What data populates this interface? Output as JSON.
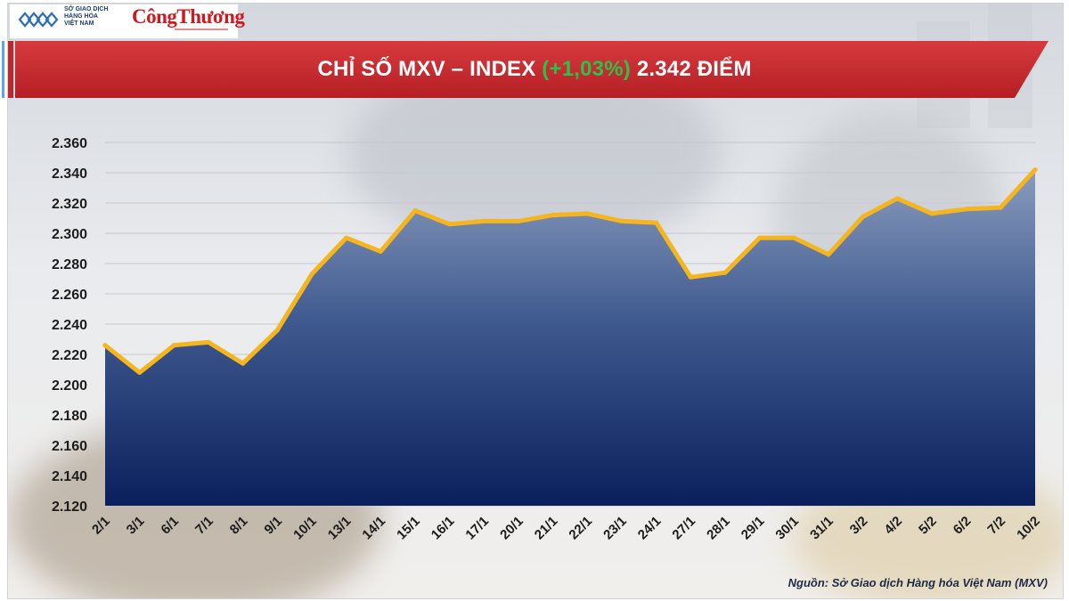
{
  "header": {
    "logo_mxv_lines": [
      "SỞ GIAO DỊCH",
      "HÀNG HÓA",
      "VIỆT NAM"
    ],
    "logo_congthuong": "CôngThương"
  },
  "title": {
    "prefix": "CHỈ SỐ MXV – INDEX ",
    "change": "(+1,03%)",
    "suffix": " 2.342 ĐIỂM"
  },
  "source": "Nguồn: Sở Giao dịch Hàng hóa Việt Nam (MXV)",
  "colors": {
    "banner_red": "#c1262b",
    "line_gold": "#f5b51e",
    "area_top": "#8a9cbd",
    "area_bottom": "#0a1f5c",
    "change_green": "#2bc24a"
  },
  "chart_data": {
    "type": "area",
    "title": "CHỈ SỐ MXV – INDEX (+1,03%) 2.342 ĐIỂM",
    "categories": [
      "2/1",
      "3/1",
      "6/1",
      "7/1",
      "8/1",
      "9/1",
      "10/1",
      "13/1",
      "14/1",
      "15/1",
      "16/1",
      "17/1",
      "20/1",
      "21/1",
      "22/1",
      "23/1",
      "24/1",
      "27/1",
      "28/1",
      "29/1",
      "30/1",
      "31/1",
      "3/2",
      "4/2",
      "5/2",
      "6/2",
      "7/2",
      "10/2"
    ],
    "series": [
      {
        "values": [
          2226,
          2208,
          2226,
          2228,
          2214,
          2236,
          2273,
          2297,
          2288,
          2315,
          2306,
          2308,
          2308,
          2312,
          2313,
          2308,
          2307,
          2271,
          2274,
          2297,
          2297,
          2286,
          2311,
          2323,
          2313,
          2316,
          2317,
          2342
        ]
      }
    ],
    "ylim": [
      2120,
      2360
    ],
    "ytick_step": 20,
    "ytick_labels": [
      "2.120",
      "2.140",
      "2.160",
      "2.180",
      "2.200",
      "2.220",
      "2.240",
      "2.260",
      "2.280",
      "2.300",
      "2.320",
      "2.340",
      "2.360"
    ],
    "grid": true,
    "legend": "none"
  }
}
